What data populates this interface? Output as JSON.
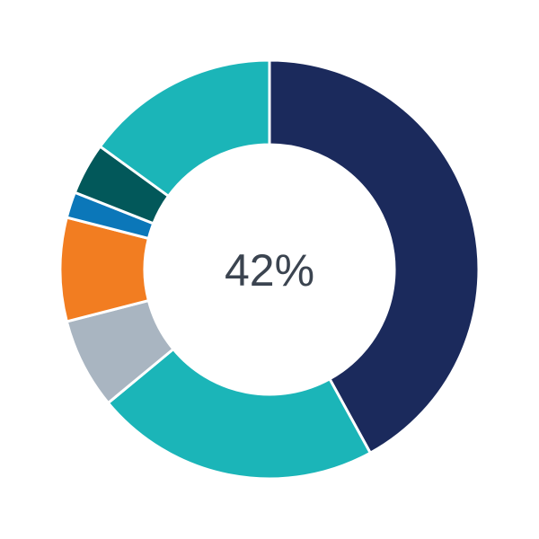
{
  "chart_data": {
    "type": "pie",
    "variant": "donut",
    "center_label": "42%",
    "start": "top",
    "direction": "clockwise",
    "slices": [
      {
        "value": 42,
        "color": "#1b2a5c"
      },
      {
        "value": 22,
        "color": "#1bb5b8"
      },
      {
        "value": 7,
        "color": "#a9b5c1"
      },
      {
        "value": 8,
        "color": "#f27d21"
      },
      {
        "value": 2,
        "color": "#0b77b9"
      },
      {
        "value": 4,
        "color": "#02585a"
      },
      {
        "value": 15,
        "color": "#1bb5b8"
      }
    ]
  }
}
